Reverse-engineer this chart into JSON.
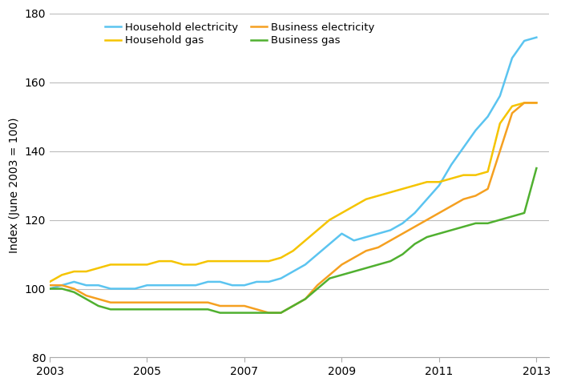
{
  "ylabel": "Index (June 2003 = 100)",
  "ylim": [
    80,
    180
  ],
  "yticks": [
    80,
    100,
    120,
    140,
    160,
    180
  ],
  "xlim": [
    2003.0,
    2013.25
  ],
  "xticks": [
    2003,
    2005,
    2007,
    2009,
    2011,
    2013
  ],
  "colors": {
    "household_elec": "#5BC4F0",
    "household_gas": "#F5C400",
    "business_elec": "#F5A020",
    "business_gas": "#50B030"
  },
  "legend_labels": [
    "Household electricity",
    "Household gas",
    "Business electricity",
    "Business gas"
  ],
  "background_color": "#ffffff",
  "grid_color": "#bbbbbb",
  "series": {
    "t": [
      2003.0,
      2003.25,
      2003.5,
      2003.75,
      2004.0,
      2004.25,
      2004.5,
      2004.75,
      2005.0,
      2005.25,
      2005.5,
      2005.75,
      2006.0,
      2006.25,
      2006.5,
      2006.75,
      2007.0,
      2007.25,
      2007.5,
      2007.75,
      2008.0,
      2008.25,
      2008.5,
      2008.75,
      2009.0,
      2009.25,
      2009.5,
      2009.75,
      2010.0,
      2010.25,
      2010.5,
      2010.75,
      2011.0,
      2011.25,
      2011.5,
      2011.75,
      2012.0,
      2012.25,
      2012.5,
      2012.75,
      2013.0
    ],
    "household_elec": [
      100,
      101,
      102,
      101,
      101,
      100,
      100,
      100,
      101,
      101,
      101,
      101,
      101,
      102,
      102,
      101,
      101,
      102,
      102,
      103,
      105,
      107,
      110,
      113,
      116,
      114,
      115,
      116,
      117,
      119,
      122,
      126,
      130,
      136,
      141,
      146,
      150,
      156,
      167,
      172,
      173
    ],
    "household_gas": [
      102,
      104,
      105,
      105,
      106,
      107,
      107,
      107,
      107,
      108,
      108,
      107,
      107,
      108,
      108,
      108,
      108,
      108,
      108,
      109,
      111,
      114,
      117,
      120,
      122,
      124,
      126,
      127,
      128,
      129,
      130,
      131,
      131,
      132,
      133,
      133,
      134,
      148,
      153,
      154,
      154
    ],
    "business_elec": [
      101,
      101,
      100,
      98,
      97,
      96,
      96,
      96,
      96,
      96,
      96,
      96,
      96,
      96,
      95,
      95,
      95,
      94,
      93,
      93,
      95,
      97,
      101,
      104,
      107,
      109,
      111,
      112,
      114,
      116,
      118,
      120,
      122,
      124,
      126,
      127,
      129,
      140,
      151,
      154,
      154
    ],
    "business_gas": [
      100,
      100,
      99,
      97,
      95,
      94,
      94,
      94,
      94,
      94,
      94,
      94,
      94,
      94,
      93,
      93,
      93,
      93,
      93,
      93,
      95,
      97,
      100,
      103,
      104,
      105,
      106,
      107,
      108,
      110,
      113,
      115,
      116,
      117,
      118,
      119,
      119,
      120,
      121,
      122,
      135
    ]
  }
}
